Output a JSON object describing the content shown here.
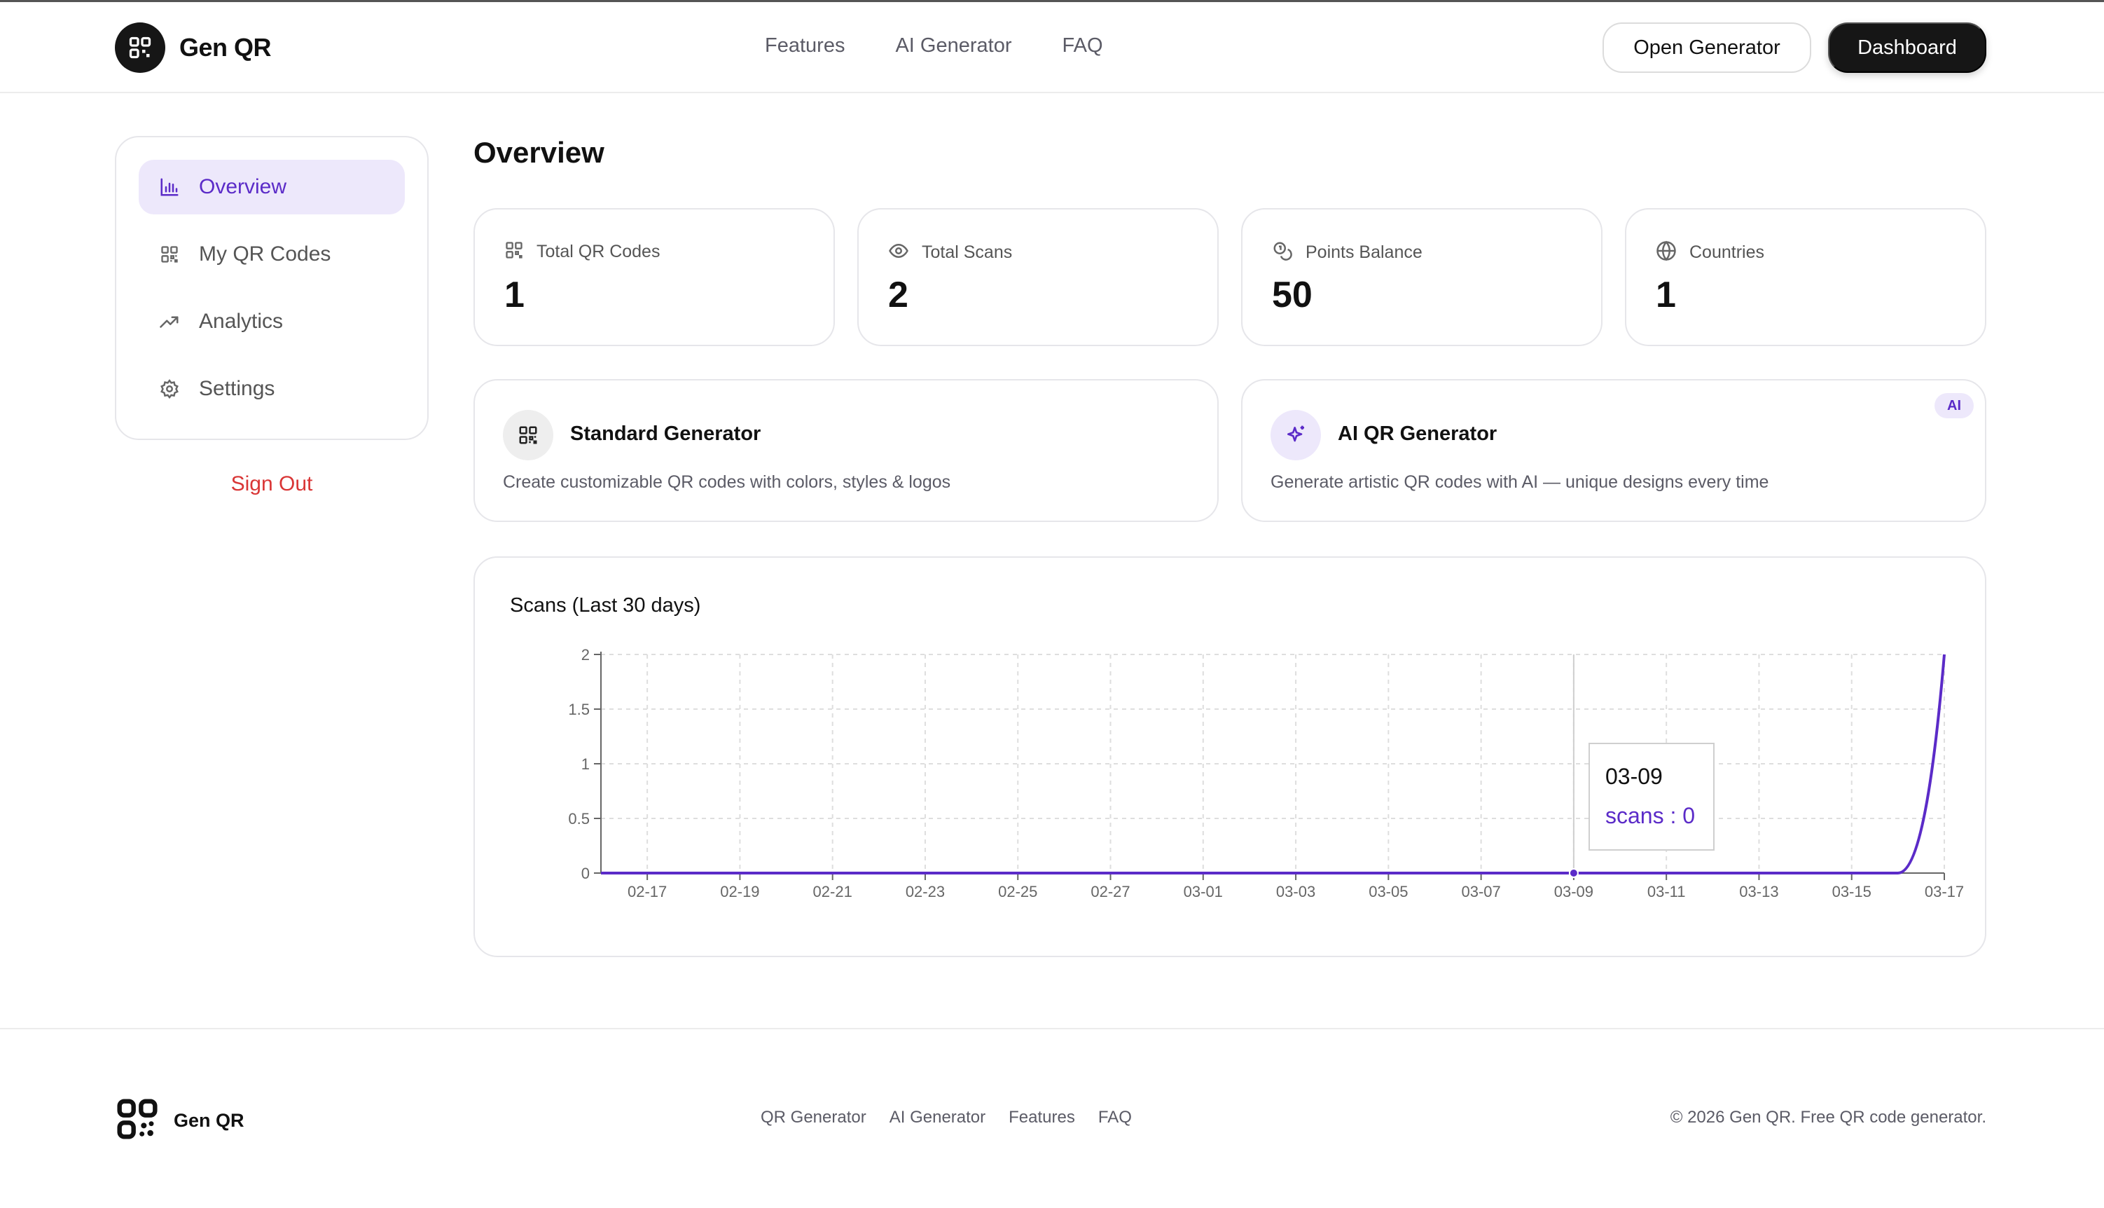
{
  "header": {
    "brand": "Gen QR",
    "nav": [
      "Features",
      "AI Generator",
      "FAQ"
    ],
    "open_generator": "Open Generator",
    "dashboard": "Dashboard"
  },
  "sidebar": {
    "items": [
      {
        "label": "Overview",
        "icon": "bar-chart-icon",
        "active": true
      },
      {
        "label": "My QR Codes",
        "icon": "qr-code-icon",
        "active": false
      },
      {
        "label": "Analytics",
        "icon": "trending-up-icon",
        "active": false
      },
      {
        "label": "Settings",
        "icon": "gear-icon",
        "active": false
      }
    ],
    "sign_out": "Sign Out"
  },
  "main": {
    "title": "Overview",
    "stats": [
      {
        "label": "Total QR Codes",
        "value": "1",
        "icon": "qr-code-icon"
      },
      {
        "label": "Total Scans",
        "value": "2",
        "icon": "eye-icon"
      },
      {
        "label": "Points Balance",
        "value": "50",
        "icon": "coins-icon"
      },
      {
        "label": "Countries",
        "value": "1",
        "icon": "globe-icon"
      }
    ],
    "generators": [
      {
        "title": "Standard Generator",
        "description": "Create customizable QR codes with colors, styles & logos",
        "icon": "qr-code-icon"
      },
      {
        "title": "AI QR Generator",
        "description": "Generate artistic QR codes with AI — unique designs every time",
        "icon": "sparkles-icon",
        "badge": "AI"
      }
    ]
  },
  "chart_data": {
    "type": "line",
    "title": "Scans (Last 30 days)",
    "series": [
      {
        "name": "scans",
        "color": "#5b2bc8"
      }
    ],
    "x": [
      "02-16",
      "02-17",
      "02-18",
      "02-19",
      "02-20",
      "02-21",
      "02-22",
      "02-23",
      "02-24",
      "02-25",
      "02-26",
      "02-27",
      "02-28",
      "03-01",
      "03-02",
      "03-03",
      "03-04",
      "03-05",
      "03-06",
      "03-07",
      "03-08",
      "03-09",
      "03-10",
      "03-11",
      "03-12",
      "03-13",
      "03-14",
      "03-15",
      "03-16",
      "03-17"
    ],
    "y": [
      0,
      0,
      0,
      0,
      0,
      0,
      0,
      0,
      0,
      0,
      0,
      0,
      0,
      0,
      0,
      0,
      0,
      0,
      0,
      0,
      0,
      0,
      0,
      0,
      0,
      0,
      0,
      0,
      0,
      2
    ],
    "x_tick_labels": [
      "02-17",
      "02-19",
      "02-21",
      "02-23",
      "02-25",
      "02-27",
      "03-01",
      "03-03",
      "03-05",
      "03-07",
      "03-09",
      "03-11",
      "03-13",
      "03-15",
      "03-17"
    ],
    "y_ticks": [
      0,
      0.5,
      1,
      1.5,
      2
    ],
    "ylim": [
      0,
      2
    ],
    "grid": true,
    "tooltip": {
      "date": "03-09",
      "label": "scans : 0"
    }
  },
  "footer": {
    "brand": "Gen QR",
    "links": [
      "QR Generator",
      "AI Generator",
      "Features",
      "FAQ"
    ],
    "copyright": "© 2026 Gen QR. Free QR code generator."
  }
}
